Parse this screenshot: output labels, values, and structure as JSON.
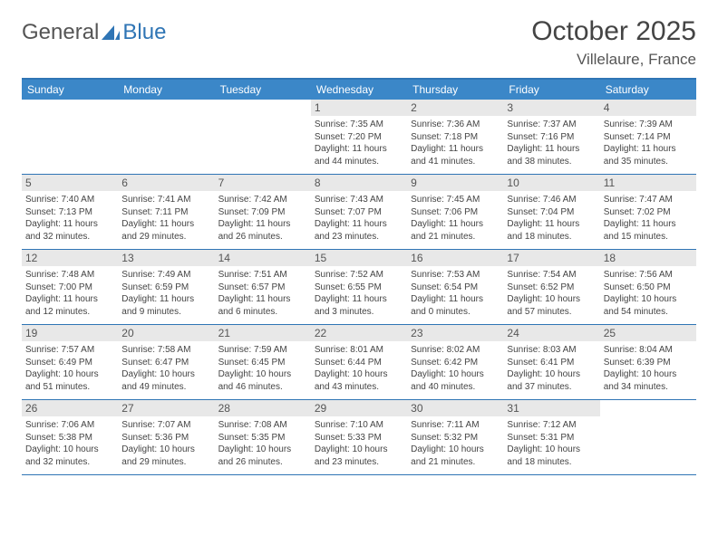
{
  "brand": {
    "left": "General",
    "right": "Blue"
  },
  "title": "October 2025",
  "location": "Villelaure, France",
  "colors": {
    "header_bar": "#3b87c8",
    "border": "#2f75b5",
    "daynum_bg": "#e8e8e8",
    "text": "#444444",
    "logo_blue": "#2f75b5"
  },
  "day_labels": [
    "Sunday",
    "Monday",
    "Tuesday",
    "Wednesday",
    "Thursday",
    "Friday",
    "Saturday"
  ],
  "weeks": [
    [
      {
        "n": "",
        "l1": "",
        "l2": "",
        "l3": "",
        "l4": ""
      },
      {
        "n": "",
        "l1": "",
        "l2": "",
        "l3": "",
        "l4": ""
      },
      {
        "n": "",
        "l1": "",
        "l2": "",
        "l3": "",
        "l4": ""
      },
      {
        "n": "1",
        "l1": "Sunrise: 7:35 AM",
        "l2": "Sunset: 7:20 PM",
        "l3": "Daylight: 11 hours",
        "l4": "and 44 minutes."
      },
      {
        "n": "2",
        "l1": "Sunrise: 7:36 AM",
        "l2": "Sunset: 7:18 PM",
        "l3": "Daylight: 11 hours",
        "l4": "and 41 minutes."
      },
      {
        "n": "3",
        "l1": "Sunrise: 7:37 AM",
        "l2": "Sunset: 7:16 PM",
        "l3": "Daylight: 11 hours",
        "l4": "and 38 minutes."
      },
      {
        "n": "4",
        "l1": "Sunrise: 7:39 AM",
        "l2": "Sunset: 7:14 PM",
        "l3": "Daylight: 11 hours",
        "l4": "and 35 minutes."
      }
    ],
    [
      {
        "n": "5",
        "l1": "Sunrise: 7:40 AM",
        "l2": "Sunset: 7:13 PM",
        "l3": "Daylight: 11 hours",
        "l4": "and 32 minutes."
      },
      {
        "n": "6",
        "l1": "Sunrise: 7:41 AM",
        "l2": "Sunset: 7:11 PM",
        "l3": "Daylight: 11 hours",
        "l4": "and 29 minutes."
      },
      {
        "n": "7",
        "l1": "Sunrise: 7:42 AM",
        "l2": "Sunset: 7:09 PM",
        "l3": "Daylight: 11 hours",
        "l4": "and 26 minutes."
      },
      {
        "n": "8",
        "l1": "Sunrise: 7:43 AM",
        "l2": "Sunset: 7:07 PM",
        "l3": "Daylight: 11 hours",
        "l4": "and 23 minutes."
      },
      {
        "n": "9",
        "l1": "Sunrise: 7:45 AM",
        "l2": "Sunset: 7:06 PM",
        "l3": "Daylight: 11 hours",
        "l4": "and 21 minutes."
      },
      {
        "n": "10",
        "l1": "Sunrise: 7:46 AM",
        "l2": "Sunset: 7:04 PM",
        "l3": "Daylight: 11 hours",
        "l4": "and 18 minutes."
      },
      {
        "n": "11",
        "l1": "Sunrise: 7:47 AM",
        "l2": "Sunset: 7:02 PM",
        "l3": "Daylight: 11 hours",
        "l4": "and 15 minutes."
      }
    ],
    [
      {
        "n": "12",
        "l1": "Sunrise: 7:48 AM",
        "l2": "Sunset: 7:00 PM",
        "l3": "Daylight: 11 hours",
        "l4": "and 12 minutes."
      },
      {
        "n": "13",
        "l1": "Sunrise: 7:49 AM",
        "l2": "Sunset: 6:59 PM",
        "l3": "Daylight: 11 hours",
        "l4": "and 9 minutes."
      },
      {
        "n": "14",
        "l1": "Sunrise: 7:51 AM",
        "l2": "Sunset: 6:57 PM",
        "l3": "Daylight: 11 hours",
        "l4": "and 6 minutes."
      },
      {
        "n": "15",
        "l1": "Sunrise: 7:52 AM",
        "l2": "Sunset: 6:55 PM",
        "l3": "Daylight: 11 hours",
        "l4": "and 3 minutes."
      },
      {
        "n": "16",
        "l1": "Sunrise: 7:53 AM",
        "l2": "Sunset: 6:54 PM",
        "l3": "Daylight: 11 hours",
        "l4": "and 0 minutes."
      },
      {
        "n": "17",
        "l1": "Sunrise: 7:54 AM",
        "l2": "Sunset: 6:52 PM",
        "l3": "Daylight: 10 hours",
        "l4": "and 57 minutes."
      },
      {
        "n": "18",
        "l1": "Sunrise: 7:56 AM",
        "l2": "Sunset: 6:50 PM",
        "l3": "Daylight: 10 hours",
        "l4": "and 54 minutes."
      }
    ],
    [
      {
        "n": "19",
        "l1": "Sunrise: 7:57 AM",
        "l2": "Sunset: 6:49 PM",
        "l3": "Daylight: 10 hours",
        "l4": "and 51 minutes."
      },
      {
        "n": "20",
        "l1": "Sunrise: 7:58 AM",
        "l2": "Sunset: 6:47 PM",
        "l3": "Daylight: 10 hours",
        "l4": "and 49 minutes."
      },
      {
        "n": "21",
        "l1": "Sunrise: 7:59 AM",
        "l2": "Sunset: 6:45 PM",
        "l3": "Daylight: 10 hours",
        "l4": "and 46 minutes."
      },
      {
        "n": "22",
        "l1": "Sunrise: 8:01 AM",
        "l2": "Sunset: 6:44 PM",
        "l3": "Daylight: 10 hours",
        "l4": "and 43 minutes."
      },
      {
        "n": "23",
        "l1": "Sunrise: 8:02 AM",
        "l2": "Sunset: 6:42 PM",
        "l3": "Daylight: 10 hours",
        "l4": "and 40 minutes."
      },
      {
        "n": "24",
        "l1": "Sunrise: 8:03 AM",
        "l2": "Sunset: 6:41 PM",
        "l3": "Daylight: 10 hours",
        "l4": "and 37 minutes."
      },
      {
        "n": "25",
        "l1": "Sunrise: 8:04 AM",
        "l2": "Sunset: 6:39 PM",
        "l3": "Daylight: 10 hours",
        "l4": "and 34 minutes."
      }
    ],
    [
      {
        "n": "26",
        "l1": "Sunrise: 7:06 AM",
        "l2": "Sunset: 5:38 PM",
        "l3": "Daylight: 10 hours",
        "l4": "and 32 minutes."
      },
      {
        "n": "27",
        "l1": "Sunrise: 7:07 AM",
        "l2": "Sunset: 5:36 PM",
        "l3": "Daylight: 10 hours",
        "l4": "and 29 minutes."
      },
      {
        "n": "28",
        "l1": "Sunrise: 7:08 AM",
        "l2": "Sunset: 5:35 PM",
        "l3": "Daylight: 10 hours",
        "l4": "and 26 minutes."
      },
      {
        "n": "29",
        "l1": "Sunrise: 7:10 AM",
        "l2": "Sunset: 5:33 PM",
        "l3": "Daylight: 10 hours",
        "l4": "and 23 minutes."
      },
      {
        "n": "30",
        "l1": "Sunrise: 7:11 AM",
        "l2": "Sunset: 5:32 PM",
        "l3": "Daylight: 10 hours",
        "l4": "and 21 minutes."
      },
      {
        "n": "31",
        "l1": "Sunrise: 7:12 AM",
        "l2": "Sunset: 5:31 PM",
        "l3": "Daylight: 10 hours",
        "l4": "and 18 minutes."
      },
      {
        "n": "",
        "l1": "",
        "l2": "",
        "l3": "",
        "l4": ""
      }
    ]
  ]
}
